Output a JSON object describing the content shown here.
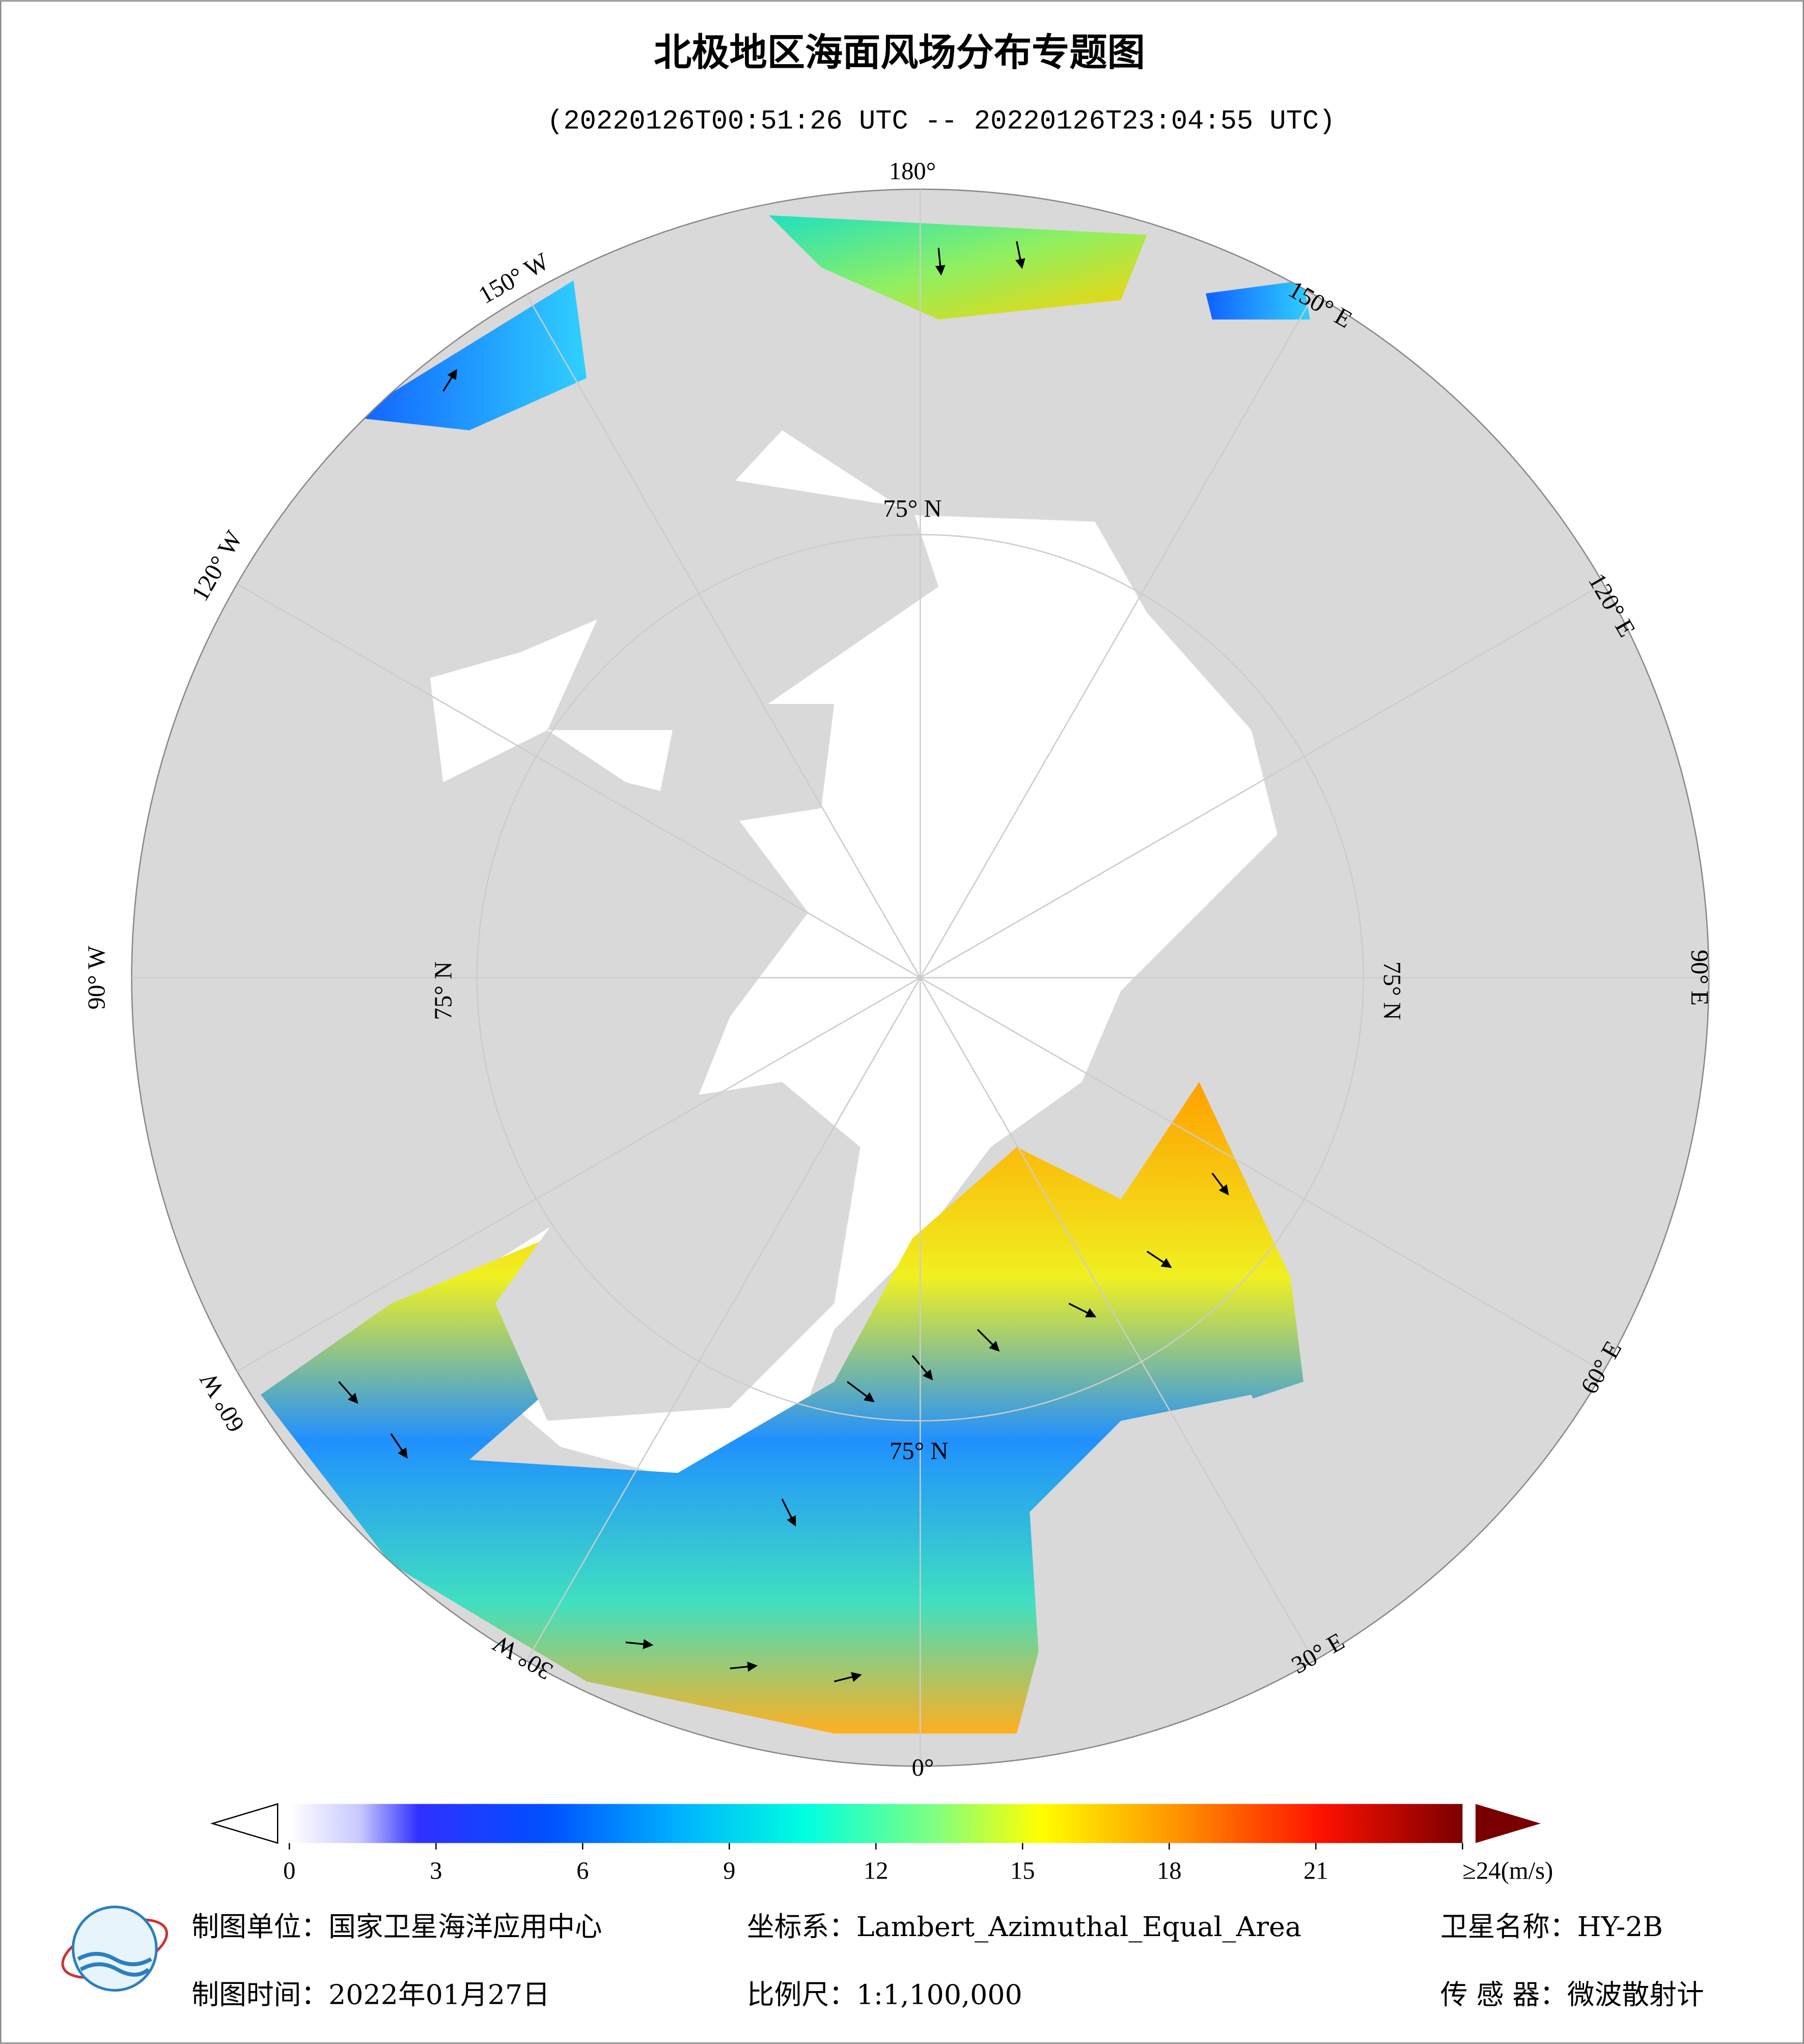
{
  "header": {
    "title": "北极地区海面风场分布专题图",
    "subtitle": "(20220126T00:51:26 UTC -- 20220126T23:04:55 UTC)"
  },
  "map": {
    "longitude_labels": [
      "180°",
      "150° E",
      "120° E",
      "90° E",
      "60° E",
      "30° E",
      "0°",
      "30° W",
      "60° W",
      "90° W",
      "120° W",
      "150° W"
    ],
    "latitude_labels": [
      "75° N",
      "75° N",
      "75° N",
      "75° N"
    ]
  },
  "colorbar": {
    "lim": [
      0,
      24
    ],
    "ticks": [
      0,
      3,
      6,
      9,
      12,
      15,
      18,
      21,
      {
        "value": 24,
        "label": "≥24(m/s)"
      }
    ]
  },
  "footer": {
    "unit": "制图单位：国家卫星海洋应用中心",
    "projection": "坐标系：Lambert_Azimuthal_Equal_Area",
    "satellite": "卫星名称：HY-2B",
    "date": "制图时间：2022年01月27日",
    "scale": "比例尺：1:1,100,000",
    "sensor": "传 感 器：微波散射计"
  }
}
